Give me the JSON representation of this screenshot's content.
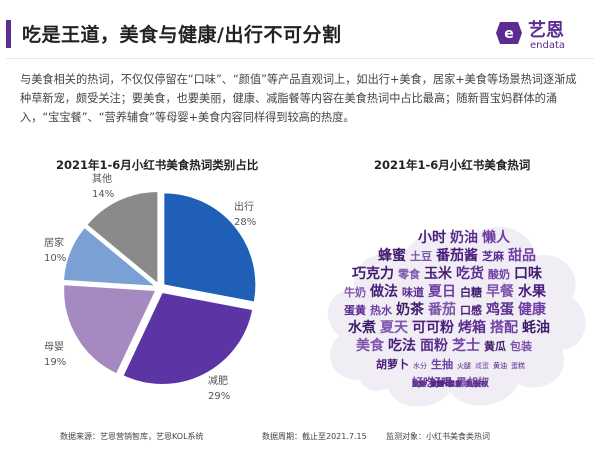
{
  "header": {
    "title": "吃是王道，美食与健康/出行不可分割",
    "logo_cn": "艺恩",
    "logo_en": "endata"
  },
  "intro": {
    "paragraph": "与美食相关的热词，不仅仅停留在“口味”、“颜值”等产品直观词上，如出行+美食，居家+美食等场景热词逐渐成种草新宠，颇受关注；要美食，也要美丽，健康、减脂餐等内容在美食热词中占比最高；随新晋宝妈群体的涌入，“宝宝餐”、“营养辅食”等母婴+美食内容同样得到较高的热度。"
  },
  "colors": {
    "accent": "#5b2d90",
    "slice_chuxing": "#1f5fb8",
    "slice_jianfei": "#5b35a3",
    "slice_muying": "#a58ac2",
    "slice_jujia": "#7ba1d4",
    "slice_qita": "#8a8a8a",
    "cloud_fill": "#f0edf4"
  },
  "chart_data": [
    {
      "type": "pie",
      "title": "2021年1-6月小红书美食热词类别占比",
      "slices": [
        {
          "name": "出行",
          "value": 28,
          "label": "28%"
        },
        {
          "name": "减肥",
          "value": 29,
          "label": "29%"
        },
        {
          "name": "母婴",
          "value": 19,
          "label": "19%"
        },
        {
          "name": "居家",
          "value": 10,
          "label": "10%"
        },
        {
          "name": "其他",
          "value": 14,
          "label": "14%"
        }
      ]
    },
    {
      "type": "wordcloud",
      "title": "2021年1-6月小红书美食热词",
      "words": [
        {
          "text": "小时",
          "weight": 3
        },
        {
          "text": "奶油",
          "weight": 3
        },
        {
          "text": "懒人",
          "weight": 3
        },
        {
          "text": "蜂蜜",
          "weight": 3
        },
        {
          "text": "土豆",
          "weight": 2
        },
        {
          "text": "番茄酱",
          "weight": 3
        },
        {
          "text": "芝麻",
          "weight": 2
        },
        {
          "text": "甜品",
          "weight": 3
        },
        {
          "text": "巧克力",
          "weight": 3
        },
        {
          "text": "零食",
          "weight": 2
        },
        {
          "text": "玉米",
          "weight": 3
        },
        {
          "text": "吃货",
          "weight": 3
        },
        {
          "text": "酸奶",
          "weight": 2
        },
        {
          "text": "口味",
          "weight": 3
        },
        {
          "text": "牛奶",
          "weight": 2
        },
        {
          "text": "做法",
          "weight": 3
        },
        {
          "text": "味道",
          "weight": 2
        },
        {
          "text": "夏日",
          "weight": 3
        },
        {
          "text": "白糖",
          "weight": 2
        },
        {
          "text": "早餐",
          "weight": 3
        },
        {
          "text": "水果",
          "weight": 3
        },
        {
          "text": "蛋黄",
          "weight": 2
        },
        {
          "text": "热水",
          "weight": 2
        },
        {
          "text": "奶茶",
          "weight": 3
        },
        {
          "text": "番茄",
          "weight": 3
        },
        {
          "text": "口感",
          "weight": 2
        },
        {
          "text": "鸡蛋",
          "weight": 3
        },
        {
          "text": "健康",
          "weight": 3
        },
        {
          "text": "水煮",
          "weight": 3
        },
        {
          "text": "夏天",
          "weight": 3
        },
        {
          "text": "可可粉",
          "weight": 3
        },
        {
          "text": "烤箱",
          "weight": 3
        },
        {
          "text": "搭配",
          "weight": 3
        },
        {
          "text": "蚝油",
          "weight": 3
        },
        {
          "text": "美食",
          "weight": 3
        },
        {
          "text": "吃法",
          "weight": 3
        },
        {
          "text": "面粉",
          "weight": 3
        },
        {
          "text": "芝士",
          "weight": 3
        },
        {
          "text": "黄瓜",
          "weight": 2
        },
        {
          "text": "包装",
          "weight": 2
        },
        {
          "text": "胡萝卜",
          "weight": 2
        },
        {
          "text": "水分",
          "weight": 1
        },
        {
          "text": "生抽",
          "weight": 2
        },
        {
          "text": "火腿",
          "weight": 1
        },
        {
          "text": "咸蛋",
          "weight": 1
        },
        {
          "text": "黄油",
          "weight": 1
        },
        {
          "text": "蛋糕",
          "weight": 1
        },
        {
          "text": "好吃",
          "weight": 2
        },
        {
          "text": "材料",
          "weight": 1
        },
        {
          "text": "黑胡椒",
          "weight": 2
        },
        {
          "text": "幸福",
          "weight": 1
        },
        {
          "text": "好喝",
          "weight": 2
        },
        {
          "text": "牛肉",
          "weight": 1
        },
        {
          "text": "酸辣",
          "weight": 1
        },
        {
          "text": "减肥",
          "weight": 1
        },
        {
          "text": "辣椒",
          "weight": 1
        },
        {
          "text": "果肉",
          "weight": 1
        },
        {
          "text": "小火",
          "weight": 1
        },
        {
          "text": "视频",
          "weight": 1
        },
        {
          "text": "芒果",
          "weight": 1
        },
        {
          "text": "朋友",
          "weight": 1
        },
        {
          "text": "泡面",
          "weight": 1
        },
        {
          "text": "蔬菜",
          "weight": 1
        },
        {
          "text": "颜值",
          "weight": 1
        },
        {
          "text": "冰箱",
          "weight": 1
        },
        {
          "text": "大火",
          "weight": 1
        },
        {
          "text": "锅里",
          "weight": 1
        },
        {
          "text": "饼干",
          "weight": 1
        },
        {
          "text": "宝宝",
          "weight": 1
        },
        {
          "text": "营养",
          "weight": 1
        },
        {
          "text": "辅食",
          "weight": 1
        },
        {
          "text": "口袋",
          "weight": 1
        },
        {
          "text": "食谱",
          "weight": 1
        },
        {
          "text": "打卡",
          "weight": 1
        },
        {
          "text": "清淡",
          "weight": 1
        },
        {
          "text": "下饭",
          "weight": 1
        },
        {
          "text": "减脂",
          "weight": 1
        },
        {
          "text": "家常",
          "weight": 1
        }
      ]
    }
  ],
  "footer": {
    "source": "数据来源：艺恩营销智库，艺恩KOL系统",
    "period": "数据周期：截止至2021.7.15",
    "subject": "监测对象：小红书美食类热词"
  }
}
